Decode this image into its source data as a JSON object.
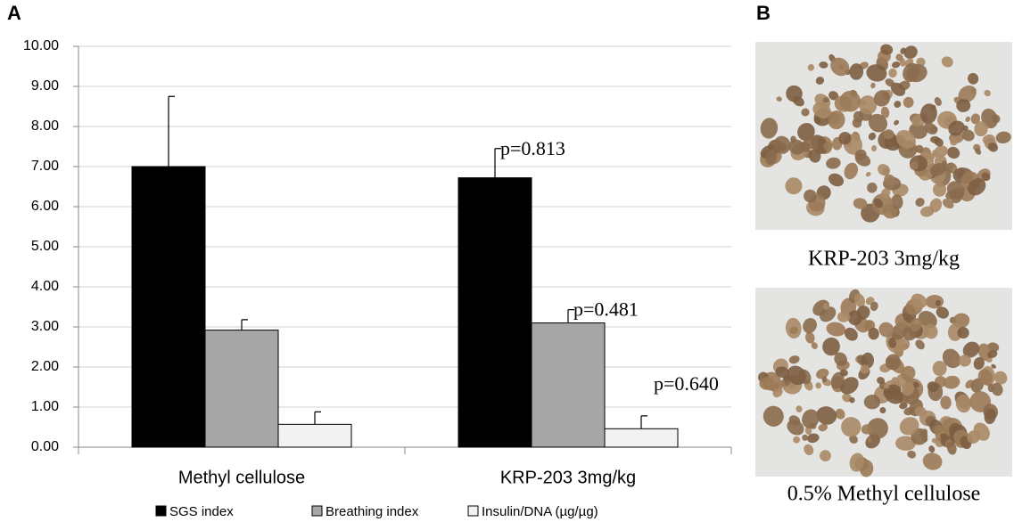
{
  "chart_data": {
    "type": "bar",
    "categories": [
      "Methyl cellulose",
      "KRP-203 3mg/kg"
    ],
    "series": [
      {
        "name": "SGS index",
        "color": "#000000",
        "values": [
          7.0,
          6.72
        ],
        "errors": [
          1.75,
          0.73
        ]
      },
      {
        "name": "Breathing index",
        "color": "#a6a6a6",
        "values": [
          2.92,
          3.1
        ],
        "errors": [
          0.26,
          0.33
        ]
      },
      {
        "name": "Insulin/DNA (µg/µg)",
        "color": "#f2f2f2",
        "values": [
          0.57,
          0.46
        ],
        "errors": [
          0.31,
          0.32
        ]
      }
    ],
    "annotations": [
      "p=0.813",
      "p=0.481",
      "p=0.640"
    ],
    "ylim": [
      0,
      10
    ],
    "yticks": [
      {
        "value": 0,
        "label": "0.00"
      },
      {
        "value": 1,
        "label": "1.00"
      },
      {
        "value": 2,
        "label": "2.00"
      },
      {
        "value": 3,
        "label": "3.00"
      },
      {
        "value": 4,
        "label": "4.00"
      },
      {
        "value": 5,
        "label": "5.00"
      },
      {
        "value": 6,
        "label": "6.00"
      },
      {
        "value": 7,
        "label": "7.00"
      },
      {
        "value": 8,
        "label": "8.00"
      },
      {
        "value": 9,
        "label": "9.00"
      },
      {
        "value": 10,
        "label": "10.00"
      }
    ],
    "grid": true,
    "legend": "bottom"
  },
  "panels": {
    "a": "A",
    "b": "B"
  },
  "images": [
    {
      "caption": "KRP-203 3mg/kg"
    },
    {
      "caption": "0.5% Methyl cellulose"
    }
  ]
}
